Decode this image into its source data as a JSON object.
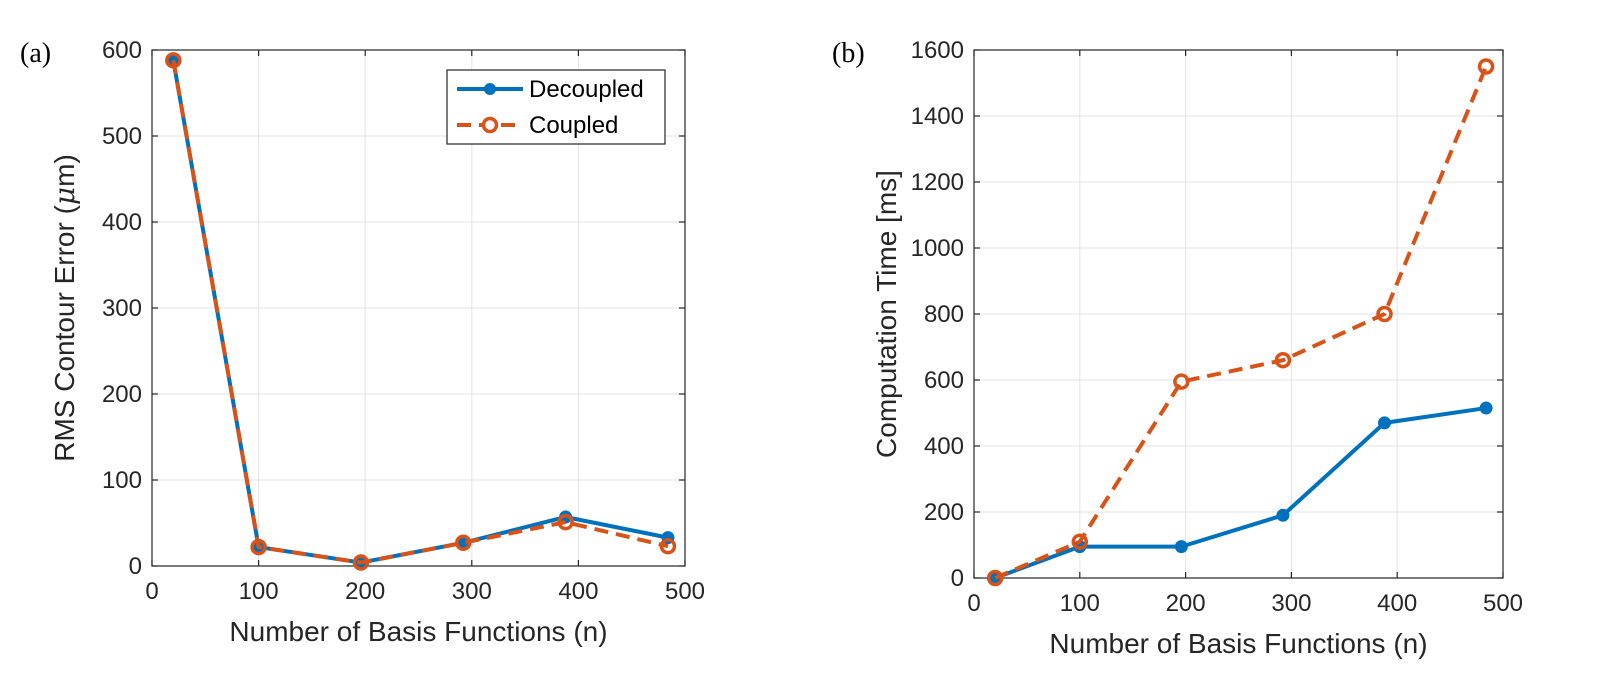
{
  "chart_data": [
    {
      "panel": "(a)",
      "type": "line",
      "x": [
        20,
        100,
        196,
        292,
        388,
        484
      ],
      "series": [
        {
          "name": "Decoupled",
          "values": [
            588,
            22,
            4,
            27,
            57,
            33
          ],
          "color": "#0072BD",
          "style": "solid",
          "marker": "filled-circle"
        },
        {
          "name": "Coupled",
          "values": [
            588,
            22,
            4,
            27,
            51,
            23
          ],
          "color": "#D95319",
          "style": "dashed",
          "marker": "open-circle"
        }
      ],
      "xlabel": "Number of Basis Functions (n)",
      "ylabel_prefix": "RMS Contour Error (",
      "ylabel_symbol": "μ",
      "ylabel_suffix": "m)",
      "xlim": [
        0,
        500
      ],
      "ylim": [
        0,
        600
      ],
      "xticks": [
        0,
        100,
        200,
        300,
        400,
        500
      ],
      "yticks": [
        0,
        100,
        200,
        300,
        400,
        500,
        600
      ],
      "grid": true,
      "legend": "top-right"
    },
    {
      "panel": "(b)",
      "type": "line",
      "x": [
        20,
        100,
        196,
        292,
        388,
        484
      ],
      "series": [
        {
          "name": "Decoupled",
          "values": [
            0,
            95,
            95,
            190,
            470,
            515
          ],
          "color": "#0072BD",
          "style": "solid",
          "marker": "filled-circle"
        },
        {
          "name": "Coupled",
          "values": [
            0,
            110,
            595,
            660,
            800,
            1550
          ],
          "color": "#D95319",
          "style": "dashed",
          "marker": "open-circle"
        }
      ],
      "xlabel": "Number of Basis Functions (n)",
      "ylabel": "Computation Time [ms]",
      "xlim": [
        0,
        500
      ],
      "ylim": [
        0,
        1600
      ],
      "xticks": [
        0,
        100,
        200,
        300,
        400,
        500
      ],
      "yticks": [
        0,
        200,
        400,
        600,
        800,
        1000,
        1200,
        1400,
        1600
      ],
      "grid": true,
      "legend": "none"
    }
  ]
}
